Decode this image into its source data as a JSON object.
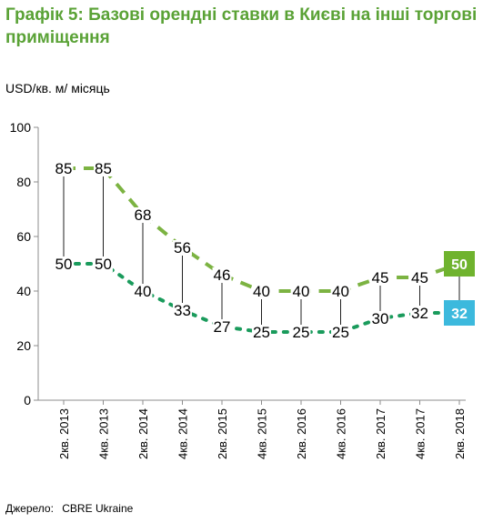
{
  "title": "Графік 5: Базові орендні ставки в Києві на інші торгові приміщення",
  "unit_label": "USD/кв. м/ місяць",
  "source": {
    "label": "Джерело:",
    "value": "CBRE Ukraine"
  },
  "colors": {
    "title": "#5aa236",
    "high_series": "#7cb342",
    "low_series": "#1a9b5c",
    "high_badge": "#6fb32e",
    "low_badge": "#3cb9dd",
    "axis": "#8c8c8c"
  },
  "chart_data": {
    "type": "line",
    "categories": [
      "2кв. 2013",
      "4кв. 2013",
      "2кв. 2014",
      "4кв. 2014",
      "2кв. 2015",
      "4кв. 2015",
      "2кв. 2016",
      "4кв. 2016",
      "2кв. 2017",
      "4кв. 2017",
      "2кв. 2018"
    ],
    "series": [
      {
        "key": "high",
        "values": [
          85,
          85,
          68,
          56,
          46,
          40,
          40,
          40,
          45,
          45,
          50
        ]
      },
      {
        "key": "low",
        "values": [
          50,
          50,
          40,
          33,
          27,
          25,
          25,
          25,
          30,
          32,
          32
        ]
      }
    ],
    "yticks": [
      0,
      20,
      40,
      60,
      80,
      100
    ],
    "ylim": [
      0,
      100
    ],
    "grid": false,
    "legend": "none"
  }
}
